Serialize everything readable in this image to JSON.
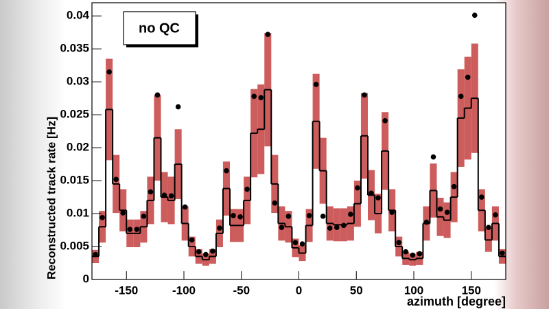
{
  "chart_data": {
    "type": "histogram",
    "legend_text": "no QC",
    "xlabel": "azimuth [degree]",
    "ylabel": "Reconstructed track rate [Hz]",
    "xlim": [
      -180,
      180
    ],
    "ylim": [
      0,
      0.042
    ],
    "xticks": [
      -150,
      -100,
      -50,
      0,
      50,
      100,
      150
    ],
    "yticks": [
      0,
      0.005,
      0.01,
      0.015,
      0.02,
      0.025,
      0.03,
      0.035,
      0.04
    ],
    "line_color": "#000000",
    "band_color": "#cd5c5c",
    "point_color": "#000000",
    "bins": [
      -180,
      -174,
      -168,
      -162,
      -156,
      -150,
      -144,
      -138,
      -132,
      -126,
      -120,
      -114,
      -108,
      -102,
      -96,
      -90,
      -84,
      -78,
      -72,
      -66,
      -60,
      -54,
      -48,
      -42,
      -36,
      -30,
      -24,
      -18,
      -12,
      -6,
      0,
      6,
      12,
      18,
      24,
      30,
      36,
      42,
      48,
      54,
      60,
      66,
      72,
      78,
      84,
      90,
      96,
      102,
      108,
      114,
      120,
      126,
      132,
      138,
      144,
      150,
      156,
      162,
      168,
      174,
      180
    ],
    "histogram": [
      0.0035,
      0.008,
      0.0258,
      0.0145,
      0.0105,
      0.007,
      0.007,
      0.008,
      0.012,
      0.0215,
      0.0125,
      0.012,
      0.0175,
      0.0085,
      0.005,
      0.0035,
      0.003,
      0.0035,
      0.007,
      0.0138,
      0.0082,
      0.0082,
      0.012,
      0.0222,
      0.0228,
      0.0288,
      0.0145,
      0.0085,
      0.008,
      0.0048,
      0.004,
      0.0082,
      0.024,
      0.0165,
      0.0085,
      0.0083,
      0.0083,
      0.0085,
      0.0115,
      0.0218,
      0.0128,
      0.01,
      0.0195,
      0.0105,
      0.005,
      0.0032,
      0.003,
      0.0032,
      0.0085,
      0.0135,
      0.0095,
      0.009,
      0.0125,
      0.0245,
      0.026,
      0.0275,
      0.0105,
      0.006,
      0.0085,
      0.0035
    ],
    "errors": [
      0.001,
      0.0024,
      0.0077,
      0.0044,
      0.0032,
      0.0021,
      0.0021,
      0.0024,
      0.0036,
      0.0065,
      0.0038,
      0.0036,
      0.0053,
      0.0026,
      0.0015,
      0.0011,
      0.0009,
      0.0011,
      0.0021,
      0.0041,
      0.0025,
      0.0025,
      0.0036,
      0.0067,
      0.0068,
      0.0086,
      0.0044,
      0.0026,
      0.0024,
      0.0014,
      0.0012,
      0.0025,
      0.0072,
      0.005,
      0.0026,
      0.0025,
      0.0025,
      0.0026,
      0.0035,
      0.0065,
      0.0038,
      0.003,
      0.0059,
      0.0032,
      0.0015,
      0.001,
      0.0009,
      0.001,
      0.0026,
      0.0041,
      0.0029,
      0.0027,
      0.0038,
      0.0074,
      0.0078,
      0.0083,
      0.0032,
      0.0018,
      0.0026,
      0.0011
    ],
    "points": [
      0.0038,
      0.0094,
      0.0315,
      0.0152,
      0.0101,
      0.0076,
      0.0076,
      0.0096,
      0.0133,
      0.028,
      0.0128,
      0.0127,
      0.0262,
      0.011,
      0.006,
      0.0042,
      0.0038,
      0.0043,
      0.0078,
      0.0165,
      0.0097,
      0.0095,
      0.0137,
      0.0278,
      0.0276,
      0.0372,
      0.0116,
      0.0079,
      0.0096,
      0.0056,
      0.0054,
      0.0097,
      0.0296,
      0.0096,
      0.0078,
      0.0079,
      0.0082,
      0.0099,
      0.0139,
      0.028,
      0.0131,
      0.0124,
      0.0241,
      0.0102,
      0.0056,
      0.0042,
      0.0037,
      0.0039,
      0.0087,
      0.0186,
      0.0107,
      0.0102,
      0.0141,
      0.0278,
      0.0307,
      0.0401,
      0.0125,
      0.0079,
      0.0098,
      0.004
    ]
  }
}
